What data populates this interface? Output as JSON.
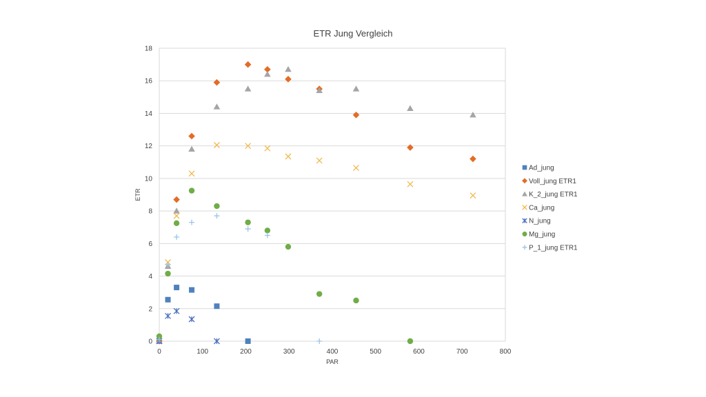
{
  "chart_data": {
    "type": "scatter",
    "title": "ETR Jung Vergleich",
    "xlabel": "PAR",
    "ylabel": "ETR",
    "xlim": [
      0,
      800
    ],
    "ylim": [
      0,
      18
    ],
    "xticks": [
      0,
      100,
      200,
      300,
      400,
      500,
      600,
      700,
      800
    ],
    "yticks": [
      0,
      2,
      4,
      6,
      8,
      10,
      12,
      14,
      16,
      18
    ],
    "grid": "horizontal",
    "legend_position": "right",
    "series": [
      {
        "name": "Ad_jung",
        "marker": "square",
        "color": "#4f81bd",
        "x": [
          0,
          20,
          40,
          75,
          133,
          205
        ],
        "y": [
          0,
          2.55,
          3.3,
          3.15,
          2.15,
          0
        ]
      },
      {
        "name": "Voll_jung ETR1",
        "marker": "diamond",
        "color": "#e46c26",
        "x": [
          0,
          40,
          75,
          133,
          205,
          250,
          298,
          370,
          455,
          580,
          725
        ],
        "y": [
          0,
          8.7,
          12.6,
          15.9,
          17.0,
          16.7,
          16.1,
          15.5,
          13.9,
          11.9,
          11.2
        ]
      },
      {
        "name": "K_2_jung ETR1",
        "marker": "triangle",
        "color": "#a5a5a5",
        "x": [
          0,
          20,
          40,
          75,
          133,
          205,
          250,
          298,
          370,
          455,
          580,
          725
        ],
        "y": [
          0,
          4.6,
          8.0,
          11.8,
          14.4,
          15.5,
          16.4,
          16.7,
          15.4,
          15.5,
          14.3,
          13.9
        ]
      },
      {
        "name": "Ca_jung",
        "marker": "x",
        "color": "#f2b84b",
        "x": [
          0,
          20,
          40,
          75,
          133,
          205,
          250,
          298,
          370,
          455,
          580,
          725
        ],
        "y": [
          0,
          4.85,
          7.7,
          10.3,
          12.05,
          12.0,
          11.85,
          11.35,
          11.1,
          10.65,
          9.65,
          8.95
        ]
      },
      {
        "name": "N_jung",
        "marker": "star",
        "color": "#4a6fc1",
        "x": [
          0,
          20,
          40,
          75,
          133
        ],
        "y": [
          0,
          1.55,
          1.85,
          1.35,
          0
        ]
      },
      {
        "name": "Mg_jung",
        "marker": "circle",
        "color": "#70ad47",
        "x": [
          0,
          20,
          40,
          75,
          133,
          205,
          250,
          298,
          370,
          455,
          580
        ],
        "y": [
          0.3,
          4.15,
          7.25,
          9.25,
          8.3,
          7.3,
          6.8,
          5.8,
          2.9,
          2.5,
          0
        ]
      },
      {
        "name": "P_1_jung ETR1",
        "marker": "plus",
        "color": "#9dc3e6",
        "x": [
          0,
          20,
          40,
          75,
          133,
          205,
          250,
          370
        ],
        "y": [
          0.1,
          4.7,
          6.4,
          7.3,
          7.7,
          6.9,
          6.5,
          0
        ]
      }
    ]
  }
}
